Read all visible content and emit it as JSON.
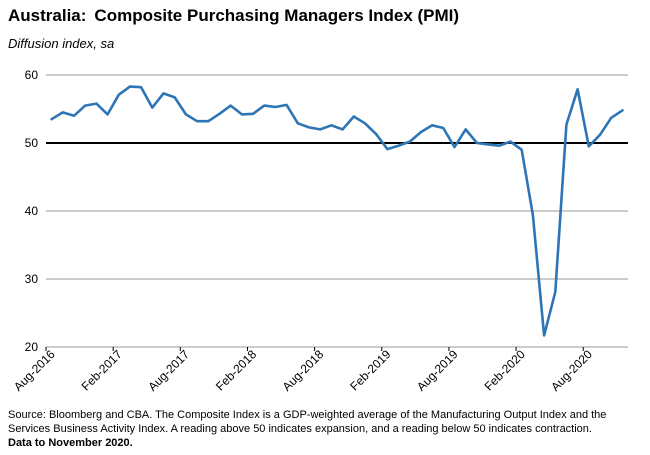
{
  "header": {
    "title_country": "Australia:",
    "title_rest": "Composite Purchasing Managers Index (PMI)",
    "subtitle": "Diffusion index, sa"
  },
  "footer": {
    "source": "Source: Bloomberg and CBA. The Composite Index is a GDP-weighted average of the Manufacturing Output Index and the Services Business Activity Index.  A reading above 50 indicates expansion, and a reading below 50 indicates contraction.",
    "note": "Data to November 2020."
  },
  "chart_data": {
    "type": "line",
    "title": "Australia:  Composite Purchasing Managers Index (PMI)",
    "ylabel": "Diffusion index, sa",
    "ylim": [
      20,
      60
    ],
    "yticks": [
      20,
      30,
      40,
      50,
      60
    ],
    "reference_line": 50,
    "grid": true,
    "line_color": "#2e75b6",
    "x_tick_labels": [
      "Aug-2016",
      "Feb-2017",
      "Aug-2017",
      "Feb-2018",
      "Aug-2018",
      "Feb-2019",
      "Aug-2019",
      "Feb-2020",
      "Aug-2020"
    ],
    "x": [
      "Aug-2016",
      "Sep-2016",
      "Oct-2016",
      "Nov-2016",
      "Dec-2016",
      "Jan-2017",
      "Feb-2017",
      "Mar-2017",
      "Apr-2017",
      "May-2017",
      "Jun-2017",
      "Jul-2017",
      "Aug-2017",
      "Sep-2017",
      "Oct-2017",
      "Nov-2017",
      "Dec-2017",
      "Jan-2018",
      "Feb-2018",
      "Mar-2018",
      "Apr-2018",
      "May-2018",
      "Jun-2018",
      "Jul-2018",
      "Aug-2018",
      "Sep-2018",
      "Oct-2018",
      "Nov-2018",
      "Dec-2018",
      "Jan-2019",
      "Feb-2019",
      "Mar-2019",
      "Apr-2019",
      "May-2019",
      "Jun-2019",
      "Jul-2019",
      "Aug-2019",
      "Sep-2019",
      "Oct-2019",
      "Nov-2019",
      "Dec-2019",
      "Jan-2020",
      "Feb-2020",
      "Mar-2020",
      "Apr-2020",
      "May-2020",
      "Jun-2020",
      "Jul-2020",
      "Aug-2020",
      "Sep-2020",
      "Oct-2020",
      "Nov-2020"
    ],
    "series": [
      {
        "values": [
          53.5,
          54.5,
          54.0,
          55.5,
          55.8,
          54.2,
          57.1,
          58.3,
          58.2,
          55.2,
          57.3,
          56.7,
          54.2,
          53.2,
          53.2,
          54.3,
          55.5,
          54.2,
          54.3,
          55.5,
          55.3,
          55.6,
          52.9,
          52.3,
          52.0,
          52.6,
          52.0,
          53.9,
          52.9,
          51.3,
          49.1,
          49.6,
          50.2,
          51.6,
          52.6,
          52.2,
          49.4,
          52.0,
          50.0,
          49.8,
          49.6,
          50.2,
          49.0,
          39.4,
          21.7,
          28.1,
          52.7,
          57.9,
          49.5,
          51.2,
          53.7,
          54.8
        ]
      }
    ]
  }
}
